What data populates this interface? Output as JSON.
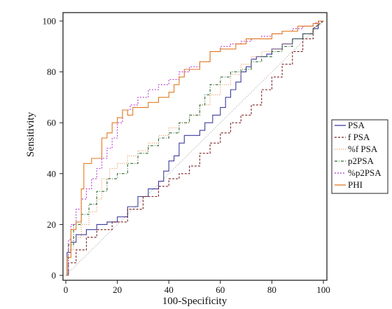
{
  "chart_data": {
    "type": "line",
    "title": "",
    "xlabel": "100-Specificity",
    "ylabel": "Sensitivity",
    "xlim": [
      0,
      100
    ],
    "ylim": [
      0,
      100
    ],
    "x_ticks": [
      0,
      20,
      40,
      60,
      80,
      100
    ],
    "y_ticks": [
      0,
      20,
      40,
      60,
      80,
      100
    ],
    "legend_position": "right",
    "grid": false,
    "reference_line": {
      "x": [
        0,
        100
      ],
      "y": [
        0,
        100
      ],
      "color": "#999999"
    },
    "series": [
      {
        "name": "PSA",
        "color": "#3b3b9e",
        "dash": "",
        "x": [
          0,
          0.5,
          0.5,
          2,
          2,
          4,
          4,
          8,
          8,
          12,
          12,
          16,
          16,
          20,
          20,
          24,
          24,
          28,
          28,
          32,
          32,
          36,
          36,
          38,
          38,
          40,
          40,
          42,
          42,
          44,
          44,
          46,
          46,
          52,
          52,
          54,
          54,
          57,
          57,
          60,
          60,
          62,
          62,
          64,
          64,
          66,
          66,
          68,
          68,
          70,
          70,
          72,
          72,
          74,
          74,
          76,
          76,
          78,
          78,
          80,
          80,
          84,
          84,
          88,
          88,
          92,
          92,
          96,
          96,
          98,
          98,
          100
        ],
        "y": [
          0,
          0,
          9,
          9,
          13,
          13,
          16,
          16,
          18,
          18,
          20,
          20,
          21,
          21,
          23,
          23,
          27,
          27,
          31,
          31,
          34,
          34,
          37,
          37,
          41,
          41,
          45,
          45,
          47,
          47,
          52,
          52,
          55,
          55,
          57,
          57,
          60,
          60,
          63,
          63,
          66,
          66,
          70,
          70,
          73,
          73,
          76,
          76,
          80,
          80,
          82,
          82,
          85,
          85,
          86,
          86,
          86,
          86,
          87,
          87,
          89,
          89,
          91,
          91,
          93,
          93,
          95,
          95,
          97,
          97,
          100,
          100
        ]
      },
      {
        "name": "f PSA",
        "color": "#7a2020",
        "dash": "3,2",
        "x": [
          0,
          1,
          1,
          4,
          4,
          8,
          8,
          12,
          12,
          18,
          18,
          24,
          24,
          30,
          30,
          36,
          36,
          40,
          40,
          44,
          44,
          48,
          48,
          52,
          52,
          56,
          56,
          60,
          60,
          64,
          64,
          68,
          68,
          72,
          72,
          76,
          76,
          80,
          80,
          84,
          84,
          88,
          88,
          92,
          92,
          96,
          96,
          100
        ],
        "y": [
          0,
          0,
          5,
          5,
          10,
          10,
          15,
          15,
          18,
          18,
          21,
          21,
          26,
          26,
          31,
          31,
          35,
          35,
          38,
          38,
          40,
          40,
          43,
          43,
          48,
          48,
          52,
          52,
          56,
          56,
          60,
          60,
          63,
          63,
          67,
          67,
          73,
          73,
          78,
          78,
          83,
          83,
          88,
          88,
          93,
          93,
          97,
          100
        ]
      },
      {
        "name": "%f PSA",
        "color": "#e8894a",
        "dash": "1,2",
        "x": [
          0,
          1,
          1,
          3,
          3,
          6,
          6,
          9,
          9,
          12,
          12,
          14,
          14,
          17,
          17,
          20,
          20,
          24,
          24,
          28,
          28,
          32,
          32,
          36,
          36,
          40,
          40,
          44,
          44,
          48,
          48,
          52,
          52,
          56,
          56,
          60,
          60,
          64,
          64,
          68,
          68,
          72,
          72,
          76,
          76,
          80,
          80,
          84,
          84,
          88,
          88,
          92,
          92,
          96,
          96,
          100
        ],
        "y": [
          0,
          0,
          10,
          10,
          15,
          15,
          20,
          20,
          25,
          25,
          30,
          30,
          38,
          38,
          42,
          42,
          44,
          44,
          47,
          47,
          49,
          49,
          52,
          52,
          55,
          55,
          58,
          58,
          60,
          60,
          63,
          63,
          67,
          67,
          71,
          71,
          75,
          75,
          79,
          79,
          83,
          83,
          86,
          86,
          88,
          88,
          89,
          89,
          91,
          91,
          93,
          93,
          95,
          95,
          97,
          100
        ]
      },
      {
        "name": "p2PSA",
        "color": "#2e6b2e",
        "dash": "4,2,1,2",
        "x": [
          0,
          1,
          1,
          3,
          3,
          6,
          6,
          9,
          9,
          12,
          12,
          16,
          16,
          20,
          20,
          24,
          24,
          28,
          28,
          32,
          32,
          36,
          36,
          40,
          40,
          44,
          44,
          48,
          48,
          52,
          52,
          54,
          54,
          56,
          56,
          60,
          60,
          64,
          64,
          68,
          68,
          72,
          72,
          76,
          76,
          80,
          80,
          84,
          84,
          88,
          88,
          92,
          92,
          96,
          96,
          100
        ],
        "y": [
          0,
          0,
          12,
          12,
          20,
          20,
          24,
          24,
          28,
          28,
          33,
          33,
          38,
          38,
          40,
          40,
          44,
          44,
          48,
          48,
          51,
          51,
          54,
          54,
          56,
          56,
          60,
          60,
          63,
          63,
          67,
          67,
          71,
          71,
          75,
          75,
          78,
          78,
          80,
          80,
          81,
          81,
          84,
          84,
          86,
          86,
          88,
          88,
          90,
          90,
          93,
          93,
          95,
          95,
          97,
          100
        ]
      },
      {
        "name": "%p2PSA",
        "color": "#b53bd1",
        "dash": "2,2",
        "x": [
          0,
          1,
          1,
          2,
          2,
          4,
          4,
          6,
          6,
          8,
          8,
          10,
          10,
          12,
          12,
          14,
          14,
          16,
          16,
          18,
          18,
          20,
          20,
          22,
          22,
          25,
          25,
          28,
          28,
          32,
          32,
          36,
          36,
          40,
          40,
          44,
          44,
          48,
          48,
          52,
          52,
          56,
          56,
          60,
          60,
          64,
          64,
          68,
          68,
          72,
          72,
          76,
          76,
          80,
          80,
          84,
          84,
          88,
          88,
          92,
          92,
          96,
          96,
          100
        ],
        "y": [
          0,
          0,
          14,
          14,
          20,
          20,
          26,
          26,
          30,
          30,
          34,
          34,
          38,
          38,
          42,
          42,
          46,
          46,
          50,
          50,
          54,
          54,
          60,
          60,
          65,
          65,
          67,
          67,
          70,
          70,
          73,
          73,
          75,
          75,
          77,
          77,
          80,
          80,
          82,
          82,
          84,
          84,
          88,
          88,
          90,
          90,
          91,
          91,
          92,
          92,
          93,
          93,
          94,
          94,
          95,
          95,
          96,
          96,
          97,
          97,
          98,
          98,
          99,
          100
        ]
      },
      {
        "name": "PHI",
        "color": "#e07a20",
        "dash": "",
        "x": [
          0,
          0.5,
          0.5,
          2,
          2,
          4,
          4,
          6,
          6,
          7,
          7,
          10,
          10,
          14,
          14,
          16,
          16,
          18,
          18,
          20,
          20,
          22,
          22,
          24,
          24,
          26,
          26,
          32,
          32,
          36,
          36,
          40,
          40,
          42,
          42,
          44,
          44,
          46,
          46,
          52,
          52,
          56,
          56,
          60,
          60,
          66,
          66,
          70,
          70,
          80,
          80,
          84,
          84,
          88,
          88,
          90,
          90,
          96,
          96,
          98,
          98,
          100
        ],
        "y": [
          0,
          0,
          7,
          7,
          18,
          18,
          21,
          21,
          34,
          34,
          44,
          44,
          46,
          46,
          54,
          54,
          56,
          56,
          60,
          60,
          62,
          62,
          65,
          65,
          63,
          63,
          66,
          66,
          68,
          68,
          70,
          70,
          72,
          72,
          75,
          75,
          78,
          78,
          81,
          81,
          84,
          84,
          88,
          88,
          89,
          89,
          91,
          91,
          93,
          93,
          95,
          95,
          96,
          96,
          96,
          96,
          98,
          98,
          99,
          99,
          100,
          100
        ]
      }
    ]
  }
}
